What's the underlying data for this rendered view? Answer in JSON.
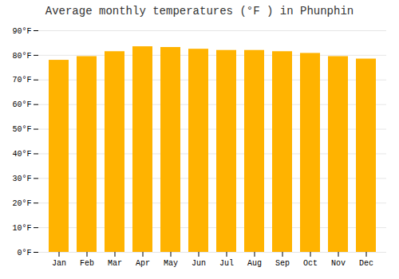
{
  "chart_data": {
    "type": "bar",
    "title": "Average monthly temperatures (°F ) in Phunphin",
    "categories": [
      "Jan",
      "Feb",
      "Mar",
      "Apr",
      "May",
      "Jun",
      "Jul",
      "Aug",
      "Sep",
      "Oct",
      "Nov",
      "Dec"
    ],
    "values": [
      78,
      79.5,
      81.5,
      83.5,
      83.2,
      82.5,
      82,
      82,
      81.5,
      80.8,
      79.5,
      78.5
    ],
    "color": "#FFB300",
    "ylim": [
      0,
      90
    ],
    "yticks": [
      {
        "value": 0,
        "label": "0°F"
      },
      {
        "value": 10,
        "label": "10°F"
      },
      {
        "value": 20,
        "label": "20°F"
      },
      {
        "value": 30,
        "label": "30°F"
      },
      {
        "value": 40,
        "label": "40°F"
      },
      {
        "value": 50,
        "label": "50°F"
      },
      {
        "value": 60,
        "label": "60°F"
      },
      {
        "value": 70,
        "label": "70°F"
      },
      {
        "value": 80,
        "label": "80°F"
      },
      {
        "value": 90,
        "label": "90°F"
      }
    ],
    "grid": true
  }
}
